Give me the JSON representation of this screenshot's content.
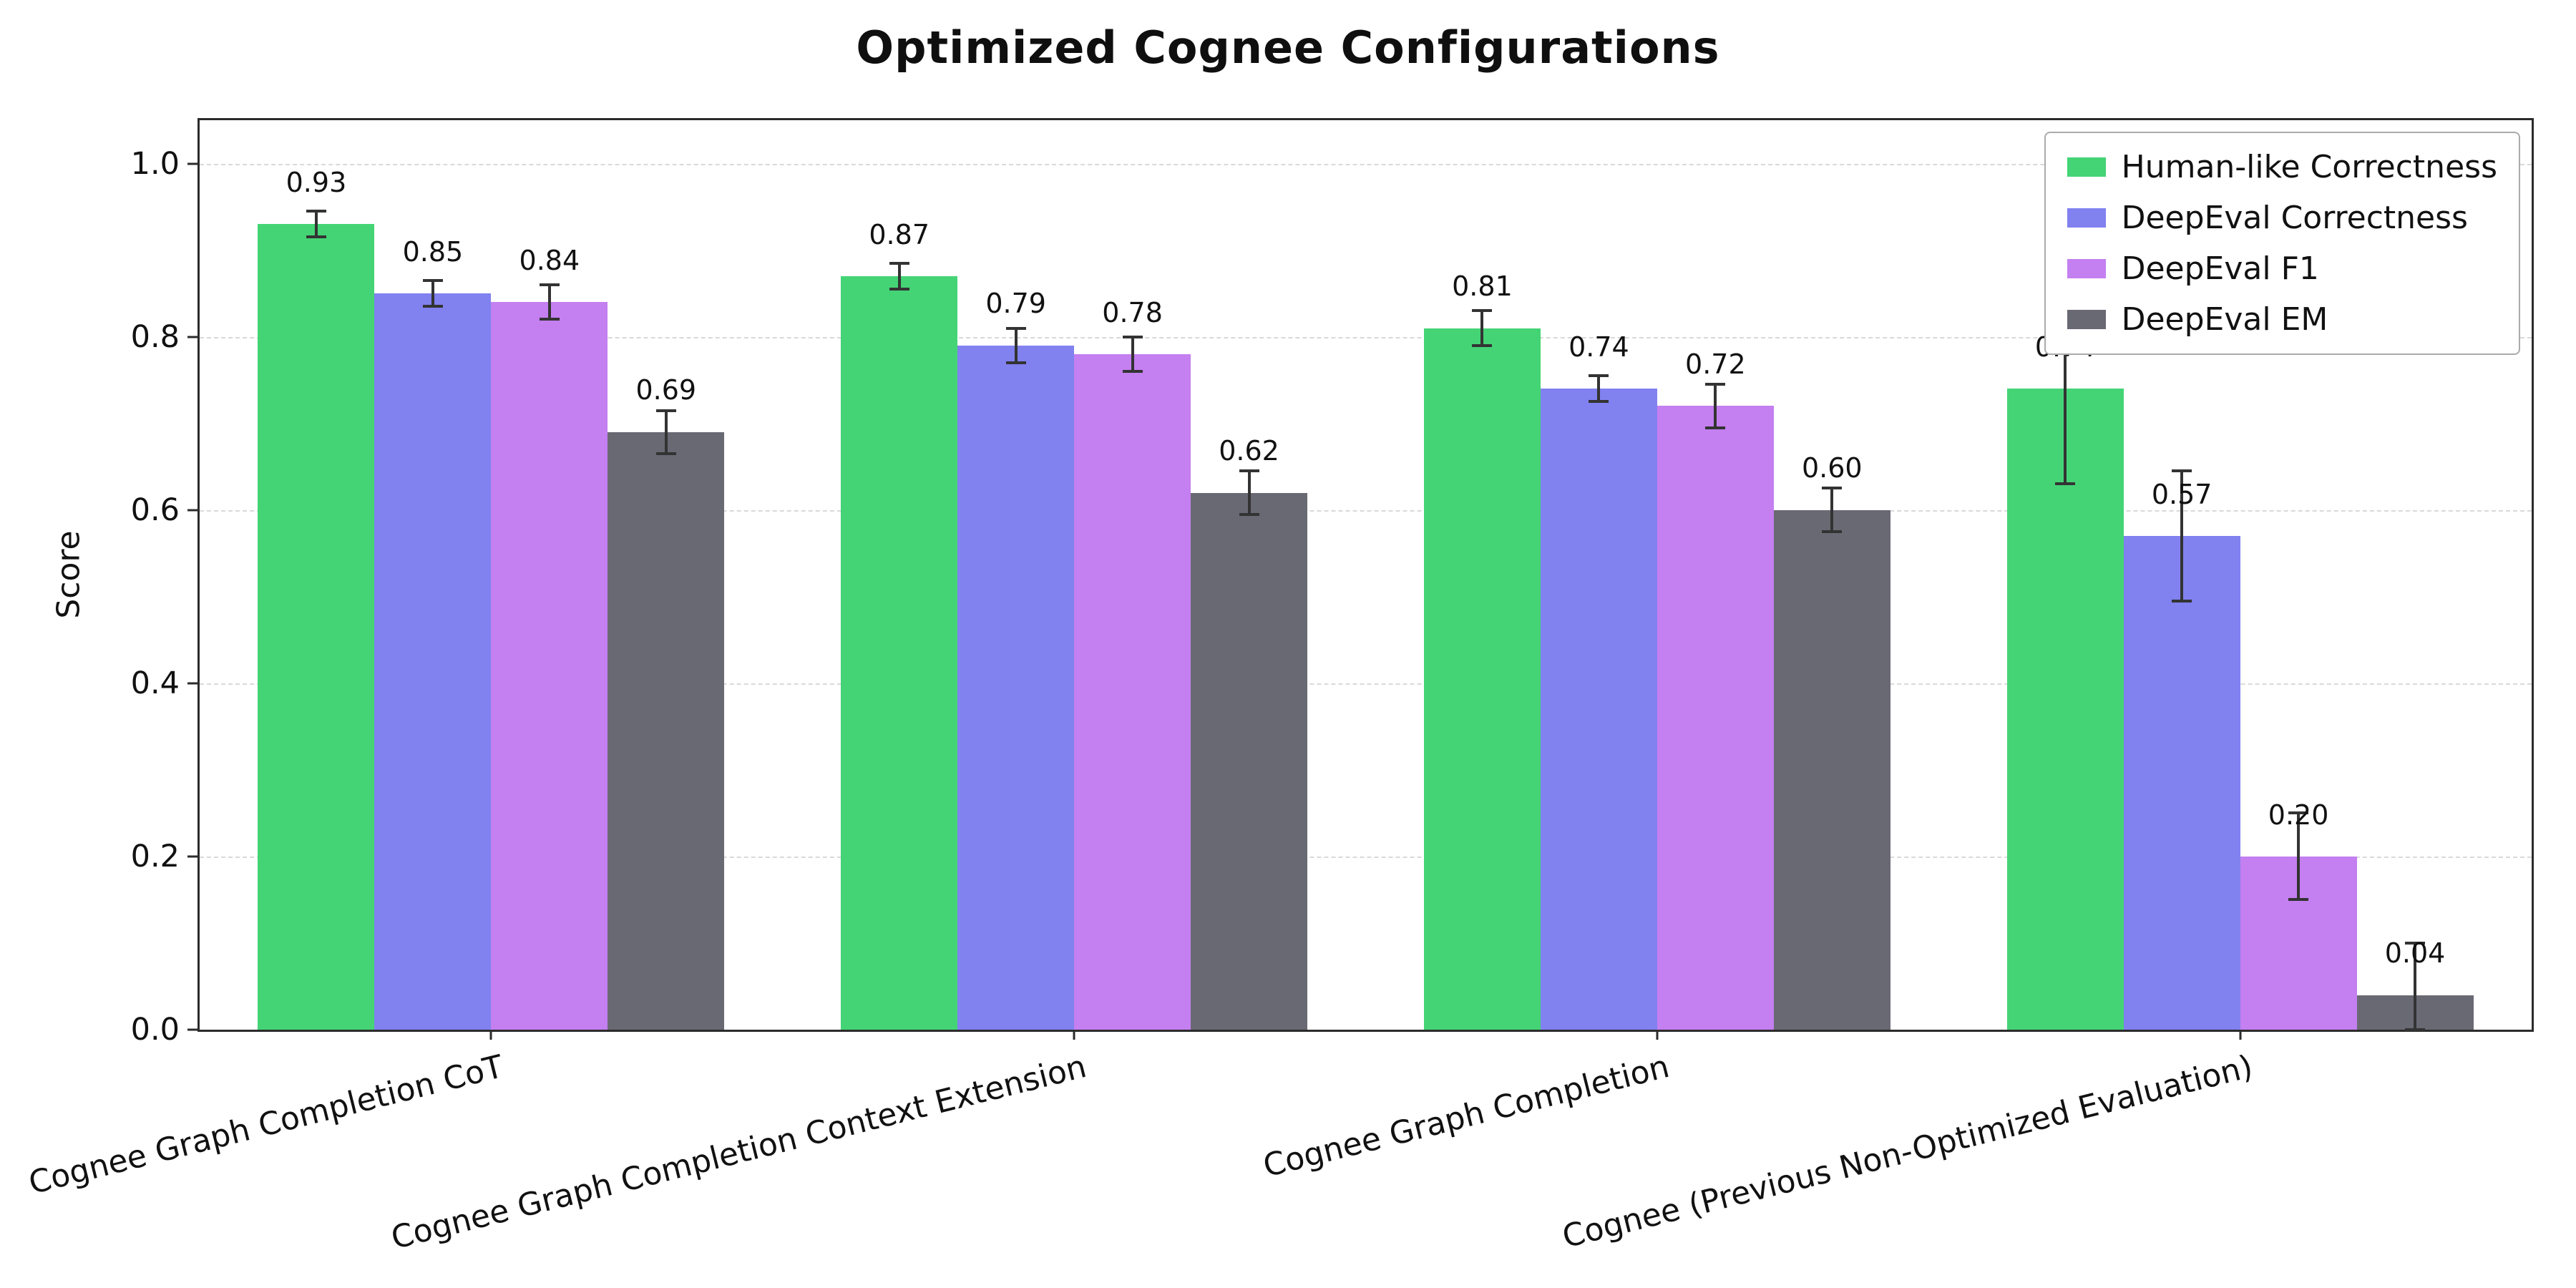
{
  "page": {
    "background": "#ffffff"
  },
  "chart_data": {
    "type": "bar",
    "title": "Optimized Cognee Configurations",
    "xlabel": "",
    "ylabel": "Score",
    "ylim": [
      0,
      1.05
    ],
    "yticks": [
      0.0,
      0.2,
      0.4,
      0.6,
      0.8,
      1.0
    ],
    "grid": {
      "axis": "y",
      "style": "dashed",
      "color": "#d9d9d9"
    },
    "legend_position": "upper right",
    "error_bar_color": "#333333",
    "value_label_format": "two-decimals",
    "categories": [
      "Cognee Graph Completion CoT",
      "Cognee Graph Completion Context Extension",
      "Cognee Graph Completion",
      "Cognee (Previous Non-Optimized Evaluation)"
    ],
    "series": [
      {
        "name": "Human-like Correctness",
        "color": "#44d475",
        "values": [
          0.93,
          0.87,
          0.81,
          0.74
        ],
        "errors": [
          0.015,
          0.015,
          0.02,
          0.11
        ]
      },
      {
        "name": "DeepEval Correctness",
        "color": "#8181f0",
        "values": [
          0.85,
          0.79,
          0.74,
          0.57
        ],
        "errors": [
          0.015,
          0.02,
          0.015,
          0.075
        ]
      },
      {
        "name": "DeepEval F1",
        "color": "#c47ff0",
        "values": [
          0.84,
          0.78,
          0.72,
          0.2
        ],
        "errors": [
          0.02,
          0.02,
          0.025,
          0.05
        ]
      },
      {
        "name": "DeepEval EM",
        "color": "#696974",
        "values": [
          0.69,
          0.62,
          0.6,
          0.04
        ],
        "errors": [
          0.025,
          0.025,
          0.025,
          0.06
        ]
      }
    ]
  }
}
